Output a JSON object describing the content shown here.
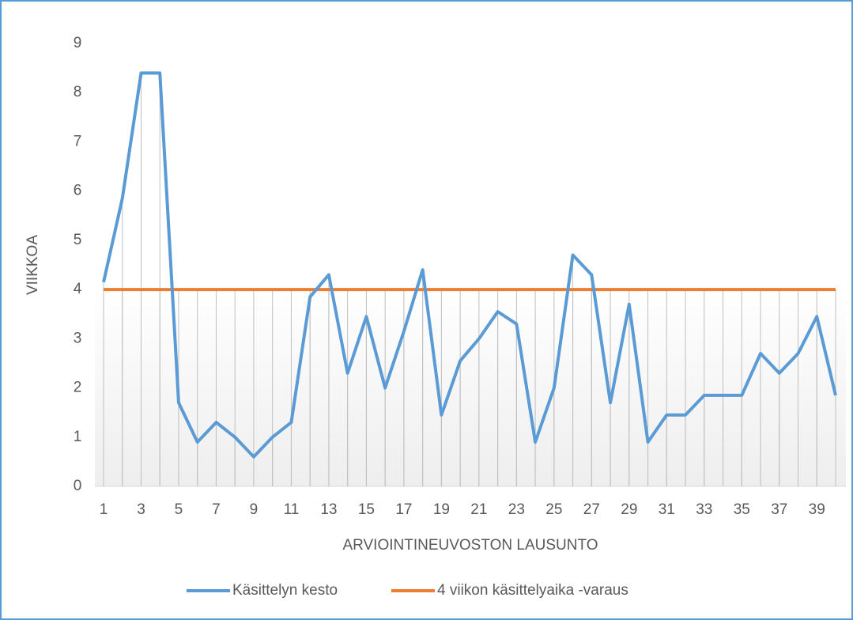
{
  "chart_data": {
    "type": "line",
    "x_label": "ARVIOINTINEUVOSTON LAUSUNTO",
    "y_label": "VIIKKOA",
    "categories": [
      1,
      null,
      3,
      null,
      5,
      null,
      7,
      null,
      9,
      null,
      11,
      null,
      13,
      null,
      15,
      null,
      17,
      null,
      19,
      null,
      21,
      null,
      23,
      null,
      25,
      null,
      27,
      null,
      29,
      null,
      31,
      null,
      33,
      null,
      35,
      null,
      37,
      null,
      39,
      null
    ],
    "series": [
      {
        "name": "Käsittelyn kesto",
        "color": "#5b9bd5",
        "values": [
          4.15,
          5.85,
          8.4,
          8.4,
          1.7,
          0.9,
          1.3,
          1.0,
          0.6,
          1.0,
          1.3,
          3.85,
          4.3,
          2.3,
          3.45,
          2.0,
          3.15,
          4.4,
          1.45,
          2.55,
          3.0,
          3.55,
          3.3,
          0.9,
          2.0,
          4.7,
          4.3,
          1.7,
          3.7,
          0.9,
          1.45,
          1.45,
          1.85,
          1.85,
          1.85,
          2.7,
          2.3,
          2.7,
          3.45,
          1.85
        ]
      },
      {
        "name": "4 viikon käsittelyaika -varaus",
        "color": "#ed7d31",
        "values": [
          4,
          4,
          4,
          4,
          4,
          4,
          4,
          4,
          4,
          4,
          4,
          4,
          4,
          4,
          4,
          4,
          4,
          4,
          4,
          4,
          4,
          4,
          4,
          4,
          4,
          4,
          4,
          4,
          4,
          4,
          4,
          4,
          4,
          4,
          4,
          4,
          4,
          4,
          4,
          4
        ]
      }
    ],
    "ylim": [
      0,
      9
    ],
    "yticks": [
      0,
      1,
      2,
      3,
      4,
      5,
      6,
      7,
      8,
      9
    ],
    "drop_lines": true,
    "legend": "bottom"
  }
}
